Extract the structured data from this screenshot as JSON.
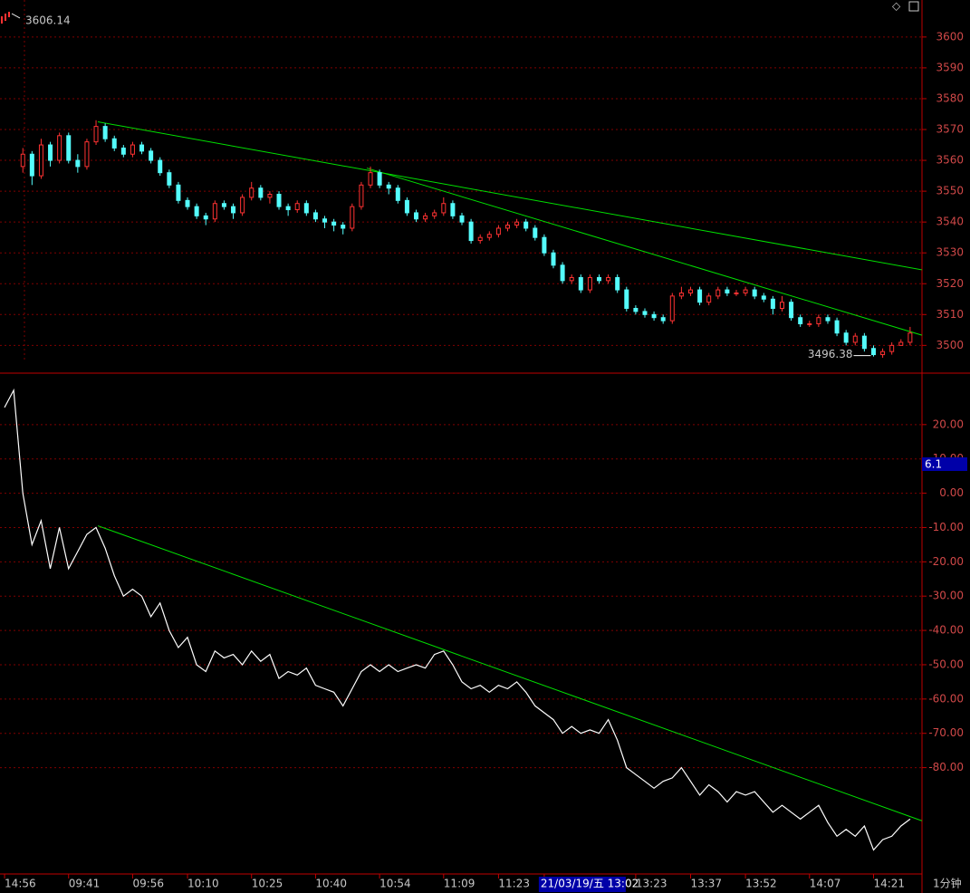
{
  "chart_data": [
    {
      "type": "candlestick",
      "xlim": [
        -0.5,
        100.3
      ],
      "ylim": [
        3491,
        3612
      ],
      "yticks": [
        3500,
        3510,
        3520,
        3530,
        3540,
        3550,
        3560,
        3570,
        3580,
        3590,
        3600
      ],
      "grid": true,
      "up_color": "#ff3232",
      "down_color": "#54fcfc",
      "open": [
        null,
        null,
        3558,
        3562,
        3555,
        3565,
        3560,
        3568,
        3560,
        3558,
        3566,
        3571,
        3567,
        3564,
        3562,
        3565,
        3563,
        3560,
        3556,
        3552,
        3547,
        3545,
        3542,
        3541,
        3546,
        3545,
        3543,
        3548,
        3551,
        3548,
        3549,
        3545,
        3544,
        3546,
        3543,
        3541,
        3540,
        3539,
        3538,
        3545,
        3552,
        3556,
        3552,
        3551,
        3547,
        3543,
        3541,
        3542,
        3543,
        3546,
        3542,
        3540,
        3534,
        3535,
        3536,
        3538,
        3539,
        3540,
        3538,
        3535,
        3530,
        3526,
        3521,
        3522,
        3518,
        3522,
        3521,
        3522,
        3518,
        3512,
        3511,
        3510,
        3509,
        3508,
        3516,
        3517,
        3518,
        3514,
        3516,
        3518,
        3517,
        3517,
        3518,
        3516,
        3515,
        3512,
        3514,
        3509,
        3507,
        3507,
        3509,
        3508,
        3504,
        3501,
        3503,
        3499,
        3497,
        3498,
        3500,
        3501
      ],
      "close": [
        null,
        null,
        3562,
        3555,
        3565,
        3560,
        3568,
        3560,
        3558,
        3566,
        3571,
        3567,
        3564,
        3562,
        3565,
        3563,
        3560,
        3556,
        3552,
        3547,
        3545,
        3542,
        3541,
        3546,
        3545,
        3543,
        3548,
        3551,
        3548,
        3549,
        3545,
        3544,
        3546,
        3543,
        3541,
        3540,
        3539,
        3538,
        3545,
        3552,
        3556,
        3552,
        3551,
        3547,
        3543,
        3541,
        3542,
        3543,
        3546,
        3542,
        3540,
        3534,
        3535,
        3536,
        3538,
        3539,
        3540,
        3538,
        3535,
        3530,
        3526,
        3521,
        3522,
        3518,
        3522,
        3521,
        3522,
        3518,
        3512,
        3511,
        3510,
        3509,
        3508,
        3516,
        3517,
        3518,
        3514,
        3516,
        3518,
        3517,
        3517,
        3518,
        3516,
        3515,
        3512,
        3514,
        3509,
        3507,
        3507,
        3509,
        3508,
        3504,
        3501,
        3503,
        3499,
        3497,
        3498,
        3500,
        3501,
        3504
      ],
      "high": [
        null,
        null,
        3564,
        3563,
        3567,
        3566,
        3569,
        3569,
        3562,
        3567,
        3573,
        3572,
        3568,
        3565,
        3566,
        3566,
        3564,
        3561,
        3557,
        3553,
        3548,
        3546,
        3543,
        3547,
        3547,
        3546,
        3549,
        3553,
        3552,
        3550,
        3550,
        3546,
        3547,
        3547,
        3544,
        3542,
        3541,
        3540,
        3546,
        3553,
        3558,
        3557,
        3553,
        3552,
        3548,
        3544,
        3543,
        3544,
        3548,
        3547,
        3543,
        3541,
        3536,
        3537,
        3539,
        3540,
        3541,
        3541,
        3539,
        3536,
        3531,
        3527,
        3523,
        3523,
        3523,
        3523,
        3523,
        3523,
        3519,
        3513,
        3512,
        3511,
        3510,
        3517,
        3519,
        3519,
        3519,
        3517,
        3519,
        3519,
        3518,
        3519,
        3519,
        3517,
        3516,
        3516,
        3515,
        3510,
        3508,
        3510,
        3510,
        3509,
        3505,
        3504,
        3504,
        3500,
        3499,
        3501,
        3502,
        3506
      ],
      "low": [
        null,
        null,
        3556,
        3552,
        3554,
        3558,
        3559,
        3559,
        3556,
        3557,
        3565,
        3566,
        3563,
        3561,
        3561,
        3562,
        3559,
        3555,
        3551,
        3546,
        3544,
        3541,
        3539,
        3540,
        3544,
        3541,
        3542,
        3547,
        3547,
        3546,
        3544,
        3542,
        3543,
        3542,
        3540,
        3538,
        3537,
        3536,
        3537,
        3544,
        3551,
        3551,
        3549,
        3546,
        3542,
        3540,
        3540,
        3541,
        3542,
        3541,
        3539,
        3533,
        3533,
        3534,
        3535,
        3537,
        3538,
        3537,
        3534,
        3529,
        3525,
        3520,
        3520,
        3517,
        3517,
        3520,
        3520,
        3517,
        3511,
        3510,
        3509,
        3508,
        3507,
        3507,
        3515,
        3516,
        3513,
        3513,
        3515,
        3516,
        3516,
        3516,
        3515,
        3514,
        3510,
        3511,
        3508,
        3506,
        3506,
        3506,
        3507,
        3503,
        3500,
        3500,
        3498,
        3496.38,
        3496,
        3497,
        3500,
        3500
      ],
      "trendline_color": "#00e000",
      "trendlines": [
        {
          "x": [
            10.2,
            100.3
          ],
          "y": [
            3572.5,
            3524.5
          ]
        },
        {
          "x": [
            39.6,
            100.3
          ],
          "y": [
            3557.5,
            3503.3
          ]
        }
      ],
      "max_label": "3606.14",
      "min_label_index": 95
    },
    {
      "type": "line",
      "xlim": [
        -0.5,
        100.3
      ],
      "ylim": [
        -111,
        35
      ],
      "yticks": [
        {
          "value": 20,
          "label": "20.00"
        },
        {
          "value": 10,
          "label": "10.00"
        },
        {
          "value": 0,
          "label": "0.00"
        },
        {
          "value": -10,
          "label": "-10.00"
        },
        {
          "value": -20,
          "label": "-20.00"
        },
        {
          "value": -30,
          "label": "-30.00"
        },
        {
          "value": -40,
          "label": "-40.00"
        },
        {
          "value": -50,
          "label": "-50.00"
        },
        {
          "value": -60,
          "label": "-60.00"
        },
        {
          "value": -70,
          "label": "-70.00"
        },
        {
          "value": -80,
          "label": "-80.00"
        }
      ],
      "grid": true,
      "color": "#ffffff",
      "categories": [
        "14:56",
        null,
        null,
        null,
        null,
        null,
        null,
        "09:41",
        null,
        null,
        null,
        null,
        null,
        null,
        "09:56",
        null,
        null,
        null,
        null,
        null,
        "10:10",
        null,
        null,
        null,
        null,
        null,
        null,
        "10:25",
        null,
        null,
        null,
        null,
        null,
        null,
        "10:40",
        null,
        null,
        null,
        null,
        null,
        null,
        "10:54",
        null,
        null,
        null,
        null,
        null,
        null,
        "11:09",
        null,
        null,
        null,
        null,
        null,
        "11:23",
        null,
        null,
        null,
        null,
        "21/03/19/五 13:02",
        null,
        null,
        null,
        null,
        null,
        null,
        null,
        null,
        null,
        "13:23",
        null,
        null,
        null,
        null,
        null,
        "13:37",
        null,
        null,
        null,
        null,
        null,
        "13:52",
        null,
        null,
        null,
        null,
        null,
        null,
        "14:07",
        null,
        null,
        null,
        null,
        null,
        null,
        "14:21",
        null,
        null,
        null,
        null
      ],
      "highlight": 59,
      "values": [
        25,
        30,
        0,
        -15,
        -8,
        -22,
        -10,
        -22,
        -17,
        -12,
        -10,
        -16,
        -24,
        -30,
        -28,
        -30,
        -36,
        -32,
        -40,
        -45,
        -42,
        -50,
        -52,
        -46,
        -48,
        -47,
        -50,
        -46,
        -49,
        -47,
        -54,
        -52,
        -53,
        -51,
        -56,
        -57,
        -58,
        -62,
        -57,
        -52,
        -50,
        -52,
        -50,
        -52,
        -51,
        -50,
        -51,
        -47,
        -46,
        -50,
        -55,
        -57,
        -56,
        -58,
        -56,
        -57,
        -55,
        -58,
        -62,
        -64,
        -66,
        -70,
        -68,
        -70,
        -69,
        -70,
        -66,
        -72,
        -80,
        -82,
        -84,
        -86,
        -84,
        -83,
        -80,
        -84,
        -88,
        -85,
        -87,
        -90,
        -87,
        -88,
        -87,
        -90,
        -93,
        -91,
        -93,
        -95,
        -93,
        -91,
        -96,
        -100,
        -98,
        -100,
        -97,
        -104,
        -101,
        -100,
        -97,
        -95
      ],
      "trendline_color": "#00e000",
      "trendlines": [
        {
          "x": [
            10.2,
            100.3
          ],
          "y": [
            -9.5,
            -95.5
          ]
        }
      ],
      "value_box": "6.1",
      "x_label": "1分钟"
    }
  ]
}
